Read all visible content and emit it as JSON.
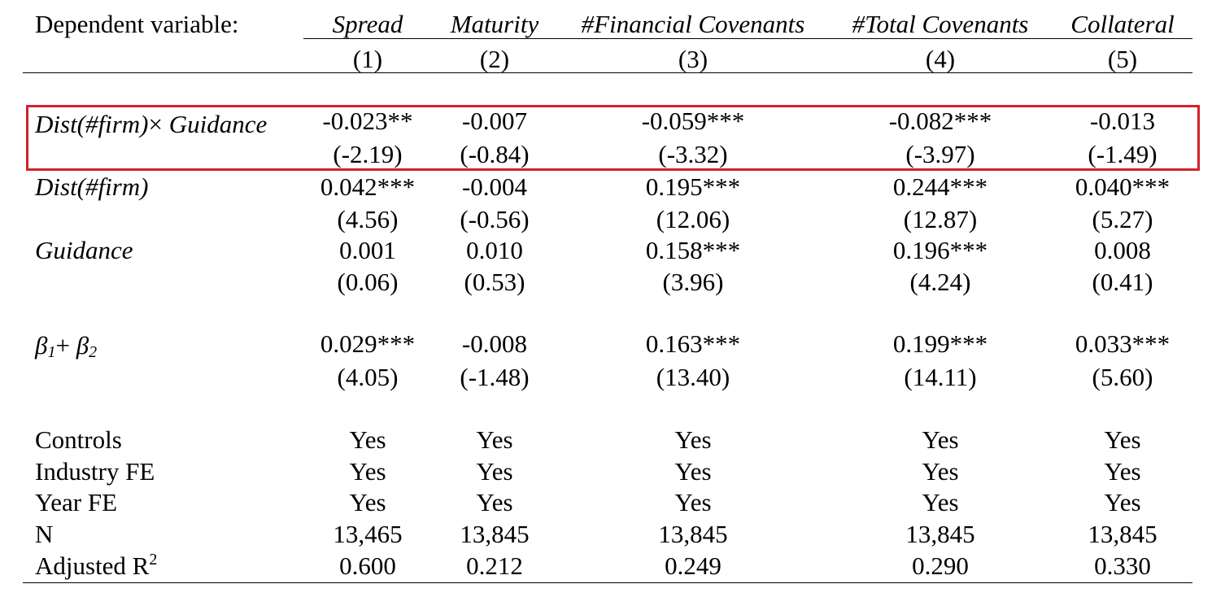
{
  "header": {
    "dep_var_label": "Dependent variable:",
    "columns": [
      {
        "name": "Spread",
        "number": "(1)"
      },
      {
        "name": "Maturity",
        "number": "(2)"
      },
      {
        "name": "#Financial Covenants",
        "number": "(3)"
      },
      {
        "name": "#Total Covenants",
        "number": "(4)"
      },
      {
        "name": "Collateral",
        "number": "(5)"
      }
    ]
  },
  "rows": {
    "interaction": {
      "label_a": "Dist(#firm)",
      "label_times": "×",
      "label_b": " Guidance",
      "coef": [
        "-0.023**",
        "-0.007",
        "-0.059***",
        "-0.082***",
        "-0.013"
      ],
      "tstat": [
        "(-2.19)",
        "(-0.84)",
        "(-3.32)",
        "(-3.97)",
        "(-1.49)"
      ]
    },
    "dist": {
      "label": "Dist(#firm)",
      "coef": [
        "0.042***",
        "-0.004",
        "0.195***",
        "0.244***",
        "0.040***"
      ],
      "tstat": [
        "(4.56)",
        "(-0.56)",
        "(12.06)",
        "(12.87)",
        "(5.27)"
      ]
    },
    "guidance": {
      "label": "Guidance",
      "coef": [
        "0.001",
        "0.010",
        "0.158***",
        "0.196***",
        "0.008"
      ],
      "tstat": [
        "(0.06)",
        "(0.53)",
        "(3.96)",
        "(4.24)",
        "(0.41)"
      ]
    },
    "beta_sum": {
      "label_b1": "β",
      "label_b1_sub": "1",
      "label_plus": "+ ",
      "label_b2": "β",
      "label_b2_sub": "2",
      "coef": [
        "0.029***",
        "-0.008",
        "0.163***",
        "0.199***",
        "0.033***"
      ],
      "tstat": [
        "(4.05)",
        "(-1.48)",
        "(13.40)",
        "(14.11)",
        "(5.60)"
      ]
    },
    "controls": {
      "label": "Controls",
      "values": [
        "Yes",
        "Yes",
        "Yes",
        "Yes",
        "Yes"
      ]
    },
    "industry_fe": {
      "label": "Industry FE",
      "values": [
        "Yes",
        "Yes",
        "Yes",
        "Yes",
        "Yes"
      ]
    },
    "year_fe": {
      "label": "Year FE",
      "values": [
        "Yes",
        "Yes",
        "Yes",
        "Yes",
        "Yes"
      ]
    },
    "n": {
      "label": "N",
      "values": [
        "13,465",
        "13,845",
        "13,845",
        "13,845",
        "13,845"
      ]
    },
    "adj_r2": {
      "label": "Adjusted R",
      "label_sup": "2",
      "values": [
        "0.600",
        "0.212",
        "0.249",
        "0.290",
        "0.330"
      ]
    }
  },
  "colors": {
    "highlight": "#d6202c"
  }
}
